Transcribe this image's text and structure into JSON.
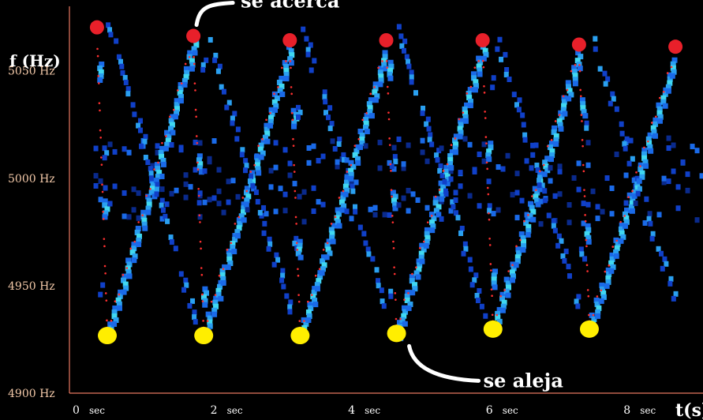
{
  "chart_data": {
    "type": "scatter",
    "title": "",
    "ylabel": "f (Hz)",
    "xlabel": "t(s)",
    "xlim": [
      0,
      9.2
    ],
    "ylim": [
      4900,
      5080
    ],
    "y_ticks": [
      {
        "value": 5050,
        "label": "5050 Hz"
      },
      {
        "value": 5000,
        "label": "5000 Hz"
      },
      {
        "value": 4950,
        "label": "4950 Hz"
      },
      {
        "value": 4900,
        "label": "4900 Hz"
      }
    ],
    "x_ticks": [
      {
        "value": 0,
        "label": "0",
        "unit": "sec"
      },
      {
        "value": 2,
        "label": "2",
        "unit": "sec"
      },
      {
        "value": 4,
        "label": "4",
        "unit": "sec"
      },
      {
        "value": 6,
        "label": "6",
        "unit": "sec"
      },
      {
        "value": 8,
        "label": "8",
        "unit": "sec"
      }
    ],
    "series": [
      {
        "name": "se acerca",
        "color": "#e8202a",
        "points": [
          {
            "t": 0.4,
            "f": 5068
          },
          {
            "t": 1.8,
            "f": 5064
          },
          {
            "t": 3.2,
            "f": 5062
          },
          {
            "t": 4.6,
            "f": 5062
          },
          {
            "t": 6.0,
            "f": 5062
          },
          {
            "t": 7.4,
            "f": 5060
          },
          {
            "t": 8.8,
            "f": 5059
          }
        ]
      },
      {
        "name": "se aleja",
        "color": "#ffee00",
        "points": [
          {
            "t": 0.55,
            "f": 4929
          },
          {
            "t": 1.95,
            "f": 4929
          },
          {
            "t": 3.35,
            "f": 4929
          },
          {
            "t": 4.75,
            "f": 4930
          },
          {
            "t": 6.15,
            "f": 4932
          },
          {
            "t": 7.55,
            "f": 4932
          }
        ]
      }
    ],
    "annotations": [
      {
        "text": "se acerca",
        "target_series": 0,
        "target_index": 1
      },
      {
        "text": "se aleja",
        "target_series": 1,
        "target_index": 3
      }
    ]
  }
}
